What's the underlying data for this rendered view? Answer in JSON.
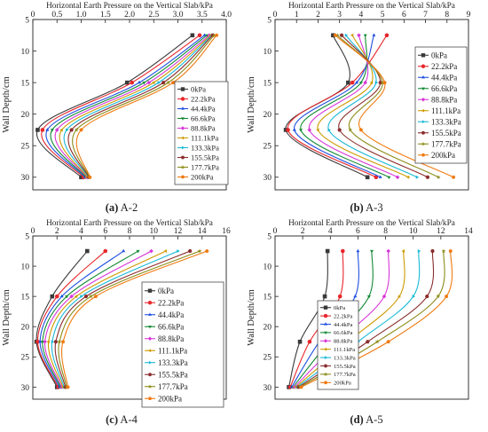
{
  "legend_labels": [
    "0kPa",
    "22.2kPa",
    "44.4kPa",
    "66.6kPa",
    "88.8kPa",
    "111.1kPa",
    "133.3kPa",
    "155.5kPa",
    "177.7kPa",
    "200kPa"
  ],
  "series_colors": [
    "#3a3a3a",
    "#e8262a",
    "#1f4fe0",
    "#138a34",
    "#d837d8",
    "#cc9b00",
    "#19b8d6",
    "#8b2d2d",
    "#8c8c1a",
    "#f07a10"
  ],
  "marker_shapes": [
    "square",
    "circle",
    "triangle-up",
    "triangle-down",
    "diamond",
    "triangle-left",
    "triangle-right",
    "hexagon",
    "star",
    "pentagon"
  ],
  "chart_data": [
    {
      "type": "line",
      "caption_tag": "(a)",
      "caption_name": "A-2",
      "xlabel": "Horizontal Earth Pressure on the Vertical Slab/kPa",
      "ylabel": "Wall Depth/cm",
      "x_axis_position": "top",
      "y_inverted": true,
      "xlim": [
        0,
        4.0
      ],
      "ylim": [
        5,
        32
      ],
      "x_ticks": [
        "0",
        "0.5",
        "1.0",
        "1.5",
        "2.0",
        "2.5",
        "3.0",
        "3.5",
        "4.0"
      ],
      "y_ticks": [
        "5",
        "10",
        "15",
        "20",
        "25",
        "30"
      ],
      "grid": false,
      "legend_placement": "center-right",
      "depths": [
        7.5,
        15,
        22.5,
        30
      ],
      "series": [
        {
          "name": "0kPa",
          "x": [
            3.3,
            1.95,
            0.1,
            1.0
          ]
        },
        {
          "name": "22.2kPa",
          "x": [
            3.45,
            2.05,
            0.2,
            1.05
          ]
        },
        {
          "name": "44.4kPa",
          "x": [
            3.55,
            2.2,
            0.3,
            1.08
          ]
        },
        {
          "name": "66.6kPa",
          "x": [
            3.6,
            2.3,
            0.4,
            1.1
          ]
        },
        {
          "name": "88.8kPa",
          "x": [
            3.65,
            2.4,
            0.5,
            1.12
          ]
        },
        {
          "name": "111.1kPa",
          "x": [
            3.68,
            2.5,
            0.6,
            1.13
          ]
        },
        {
          "name": "133.3kPa",
          "x": [
            3.7,
            2.6,
            0.7,
            1.15
          ]
        },
        {
          "name": "155.5kPa",
          "x": [
            3.72,
            2.7,
            0.8,
            1.16
          ]
        },
        {
          "name": "177.7kPa",
          "x": [
            3.75,
            2.8,
            0.9,
            1.17
          ]
        },
        {
          "name": "200kPa",
          "x": [
            3.8,
            2.9,
            1.0,
            1.18
          ]
        }
      ]
    },
    {
      "type": "line",
      "caption_tag": "(b)",
      "caption_name": "A-3",
      "xlabel": "Horizontal Earth Pressure on the Vertical Slab/kPa",
      "ylabel": "Wall Depth/cm",
      "x_axis_position": "top",
      "y_inverted": true,
      "xlim": [
        0,
        9
      ],
      "ylim": [
        5,
        32
      ],
      "x_ticks": [
        "0",
        "1",
        "2",
        "3",
        "4",
        "5",
        "6",
        "7",
        "8",
        "9"
      ],
      "y_ticks": [
        "5",
        "10",
        "15",
        "20",
        "25",
        "30"
      ],
      "grid": false,
      "legend_placement": "top-right",
      "depths": [
        7.5,
        15,
        22.5,
        30
      ],
      "series": [
        {
          "name": "0kPa",
          "x": [
            2.7,
            3.4,
            0.5,
            4.3
          ]
        },
        {
          "name": "22.2kPa",
          "x": [
            5.2,
            3.6,
            0.6,
            4.7
          ]
        },
        {
          "name": "44.4kPa",
          "x": [
            4.6,
            3.8,
            0.9,
            4.9
          ]
        },
        {
          "name": "66.6kPa",
          "x": [
            4.2,
            4.0,
            1.2,
            5.3
          ]
        },
        {
          "name": "88.8kPa",
          "x": [
            3.9,
            4.2,
            1.6,
            5.7
          ]
        },
        {
          "name": "111.1kPa",
          "x": [
            3.6,
            4.5,
            2.0,
            6.2
          ]
        },
        {
          "name": "133.3kPa",
          "x": [
            3.3,
            4.7,
            2.5,
            6.6
          ]
        },
        {
          "name": "155.5kPa",
          "x": [
            3.1,
            4.9,
            3.0,
            7.1
          ]
        },
        {
          "name": "177.7kPa",
          "x": [
            2.9,
            5.0,
            3.5,
            7.6
          ]
        },
        {
          "name": "200kPa",
          "x": [
            2.8,
            5.1,
            4.0,
            8.3
          ]
        }
      ]
    },
    {
      "type": "line",
      "caption_tag": "(c)",
      "caption_name": "A-4",
      "xlabel": "Horizontal Earth Pressure on the Vertical Slab/kPa",
      "ylabel": "Wall Depth/cm",
      "x_axis_position": "top",
      "y_inverted": true,
      "xlim": [
        0,
        16
      ],
      "ylim": [
        5,
        32
      ],
      "x_ticks": [
        "0",
        "2",
        "4",
        "6",
        "8",
        "10",
        "12",
        "14",
        "16"
      ],
      "y_ticks": [
        "5",
        "10",
        "15",
        "20",
        "25",
        "30"
      ],
      "grid": false,
      "legend_placement": "center-right",
      "depths": [
        7.5,
        15,
        22.5,
        30
      ],
      "series": [
        {
          "name": "0kPa",
          "x": [
            4.5,
            1.6,
            0.3,
            2.0
          ]
        },
        {
          "name": "22.2kPa",
          "x": [
            6.0,
            2.0,
            0.4,
            2.1
          ]
        },
        {
          "name": "44.4kPa",
          "x": [
            7.5,
            2.4,
            0.6,
            2.2
          ]
        },
        {
          "name": "66.6kPa",
          "x": [
            8.7,
            2.8,
            0.8,
            2.3
          ]
        },
        {
          "name": "88.8kPa",
          "x": [
            9.8,
            3.2,
            1.0,
            2.4
          ]
        },
        {
          "name": "111.1kPa",
          "x": [
            11.0,
            3.6,
            1.3,
            2.5
          ]
        },
        {
          "name": "133.3kPa",
          "x": [
            12.0,
            4.0,
            1.6,
            2.6
          ]
        },
        {
          "name": "155.5kPa",
          "x": [
            13.0,
            4.4,
            1.9,
            2.7
          ]
        },
        {
          "name": "177.7kPa",
          "x": [
            13.8,
            4.8,
            2.2,
            2.8
          ]
        },
        {
          "name": "200kPa",
          "x": [
            14.4,
            5.2,
            2.5,
            2.9
          ]
        }
      ]
    },
    {
      "type": "line",
      "caption_tag": "(d)",
      "caption_name": "A-5",
      "xlabel": "Horizontal Earth Pressure on the Vertical Slab/kPa",
      "ylabel": "Wall Depth/cm",
      "x_axis_position": "top",
      "y_inverted": true,
      "xlim": [
        0,
        14
      ],
      "ylim": [
        5,
        32
      ],
      "x_ticks": [
        "0",
        "2",
        "4",
        "6",
        "8",
        "10",
        "12",
        "14"
      ],
      "y_ticks": [
        "5",
        "10",
        "15",
        "20",
        "25",
        "30"
      ],
      "grid": false,
      "legend_placement": "bottom-left",
      "depths": [
        7.5,
        15,
        22.5,
        30
      ],
      "series": [
        {
          "name": "0kPa",
          "x": [
            3.8,
            3.6,
            1.8,
            1.0
          ]
        },
        {
          "name": "22.2kPa",
          "x": [
            4.9,
            4.7,
            2.5,
            1.1
          ]
        },
        {
          "name": "44.4kPa",
          "x": [
            6.0,
            5.8,
            3.2,
            1.2
          ]
        },
        {
          "name": "66.6kPa",
          "x": [
            7.0,
            6.8,
            3.9,
            1.3
          ]
        },
        {
          "name": "88.8kPa",
          "x": [
            8.2,
            7.9,
            4.6,
            1.4
          ]
        },
        {
          "name": "111.1kPa",
          "x": [
            9.3,
            9.0,
            5.3,
            1.5
          ]
        },
        {
          "name": "133.3kPa",
          "x": [
            10.4,
            10.0,
            6.0,
            1.6
          ]
        },
        {
          "name": "155.5kPa",
          "x": [
            11.4,
            11.0,
            6.7,
            1.7
          ]
        },
        {
          "name": "177.7kPa",
          "x": [
            12.2,
            11.8,
            7.4,
            1.8
          ]
        },
        {
          "name": "200kPa",
          "x": [
            12.7,
            12.4,
            8.2,
            1.9
          ]
        }
      ]
    }
  ]
}
